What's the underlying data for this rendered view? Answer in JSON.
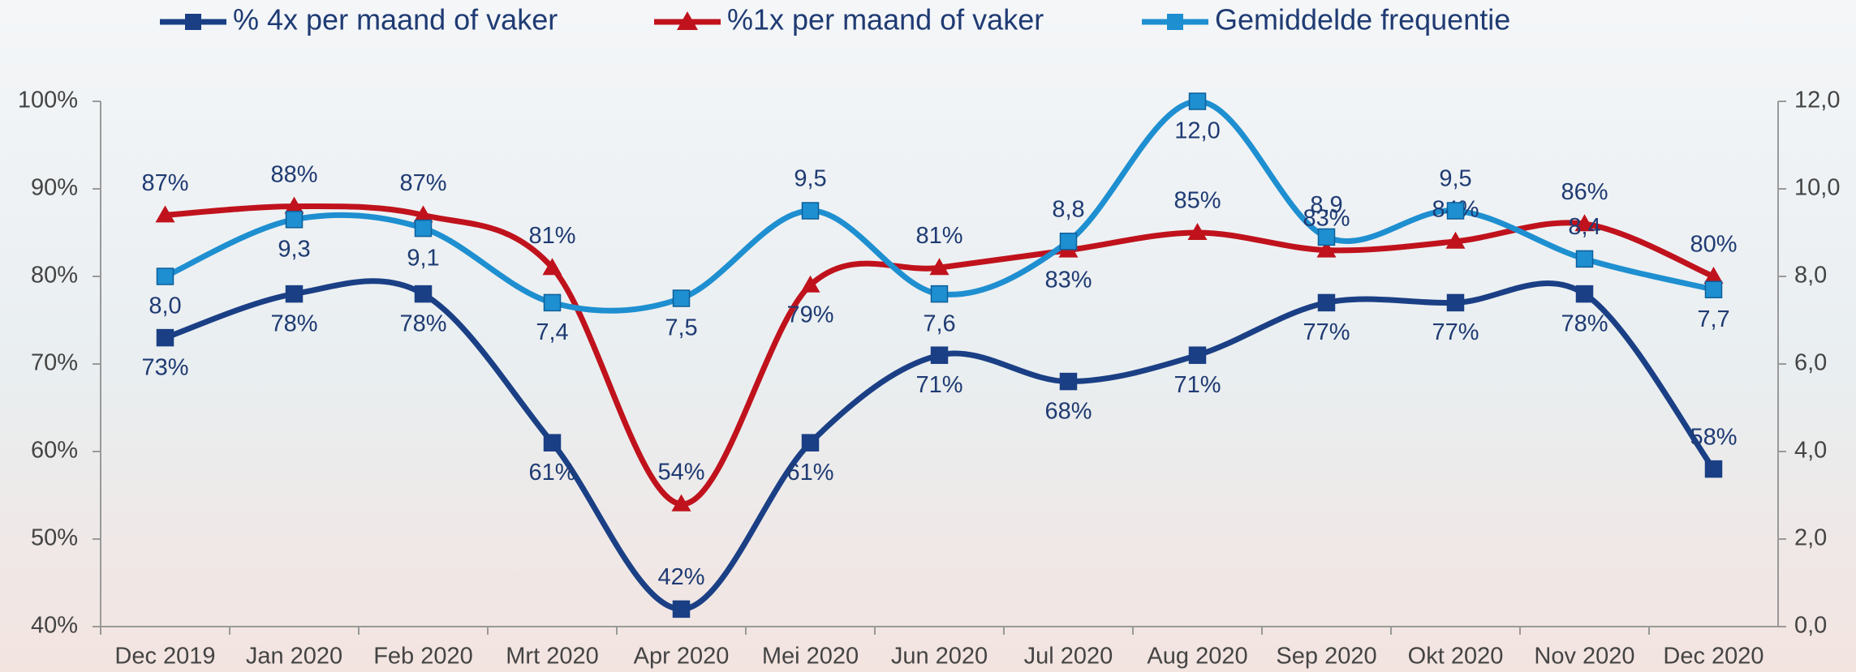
{
  "chart_data": {
    "type": "line",
    "categories": [
      "Dec 2019",
      "Jan 2020",
      "Feb 2020",
      "Mrt 2020",
      "Apr 2020",
      "Mei 2020",
      "Jun 2020",
      "Jul 2020",
      "Aug 2020",
      "Sep 2020",
      "Okt 2020",
      "Nov 2020",
      "Dec 2020"
    ],
    "series": [
      {
        "name": "% 4x per maand of vaker",
        "color": "#1a3f85",
        "marker": "square",
        "axis": "y",
        "values": [
          73,
          78,
          78,
          61,
          42,
          61,
          71,
          68,
          71,
          77,
          77,
          78,
          58
        ],
        "value_labels": [
          "73%",
          "78%",
          "78%",
          "61%",
          "42%",
          "61%",
          "71%",
          "68%",
          "71%",
          "77%",
          "77%",
          "78%",
          "58%"
        ]
      },
      {
        "name": "%1x per maand of vaker",
        "color": "#c0121c",
        "marker": "triangle",
        "axis": "y",
        "values": [
          87,
          88,
          87,
          81,
          54,
          79,
          81,
          83,
          85,
          83,
          84,
          86,
          80
        ],
        "value_labels": [
          "87%",
          "88%",
          "87%",
          "81%",
          "54%",
          "79%",
          "81%",
          "83%",
          "85%",
          "83%",
          "84%",
          "86%",
          "80%"
        ]
      },
      {
        "name": "Gemiddelde frequentie",
        "color": "#1e8fd0",
        "marker": "square",
        "axis": "y2",
        "values": [
          8.0,
          9.3,
          9.1,
          7.4,
          7.5,
          9.5,
          7.6,
          8.8,
          12.0,
          8.9,
          9.5,
          8.4,
          7.7
        ],
        "value_labels": [
          "8,0",
          "9,3",
          "9,1",
          "7,4",
          "7,5",
          "9,5",
          "7,6",
          "8,8",
          "12,0",
          "8,9",
          "9,5",
          "8,4",
          "7,7"
        ]
      }
    ],
    "ylim": [
      40,
      100
    ],
    "yticks": [
      {
        "value": 40,
        "label": "40%"
      },
      {
        "value": 50,
        "label": "50%"
      },
      {
        "value": 60,
        "label": "60%"
      },
      {
        "value": 70,
        "label": "70%"
      },
      {
        "value": 80,
        "label": "80%"
      },
      {
        "value": 90,
        "label": "90%"
      },
      {
        "value": 100,
        "label": "100%"
      }
    ],
    "y2lim": [
      0,
      12
    ],
    "y2ticks": [
      {
        "value": 0,
        "label": "0,0"
      },
      {
        "value": 2,
        "label": "2,0"
      },
      {
        "value": 4,
        "label": "4,0"
      },
      {
        "value": 6,
        "label": "6,0"
      },
      {
        "value": 8,
        "label": "8,0"
      },
      {
        "value": 10,
        "label": "10,0"
      },
      {
        "value": 12,
        "label": "12,0"
      }
    ],
    "legend": "top",
    "smooth": true
  }
}
